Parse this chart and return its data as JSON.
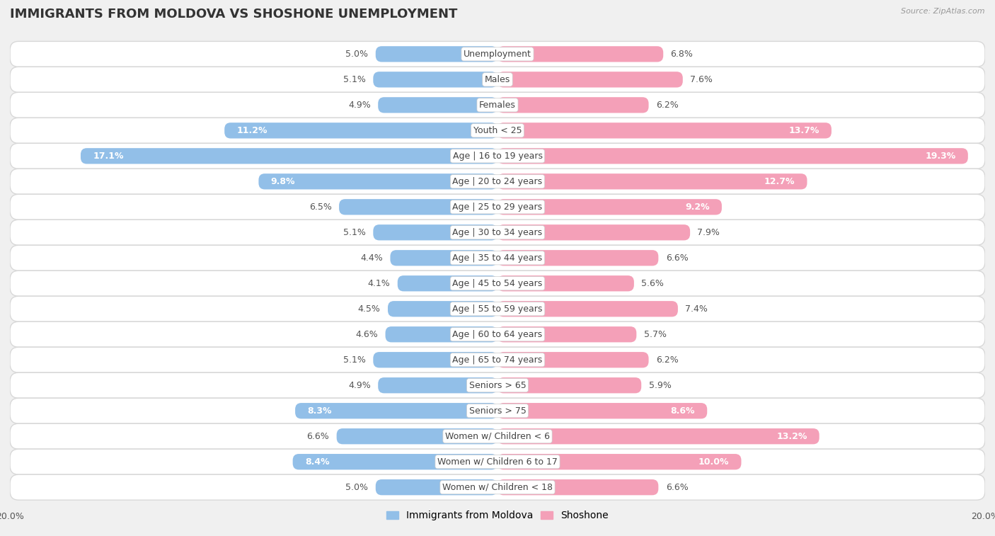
{
  "title": "IMMIGRANTS FROM MOLDOVA VS SHOSHONE UNEMPLOYMENT",
  "source": "Source: ZipAtlas.com",
  "categories": [
    "Unemployment",
    "Males",
    "Females",
    "Youth < 25",
    "Age | 16 to 19 years",
    "Age | 20 to 24 years",
    "Age | 25 to 29 years",
    "Age | 30 to 34 years",
    "Age | 35 to 44 years",
    "Age | 45 to 54 years",
    "Age | 55 to 59 years",
    "Age | 60 to 64 years",
    "Age | 65 to 74 years",
    "Seniors > 65",
    "Seniors > 75",
    "Women w/ Children < 6",
    "Women w/ Children 6 to 17",
    "Women w/ Children < 18"
  ],
  "moldova_values": [
    5.0,
    5.1,
    4.9,
    11.2,
    17.1,
    9.8,
    6.5,
    5.1,
    4.4,
    4.1,
    4.5,
    4.6,
    5.1,
    4.9,
    8.3,
    6.6,
    8.4,
    5.0
  ],
  "shoshone_values": [
    6.8,
    7.6,
    6.2,
    13.7,
    19.3,
    12.7,
    9.2,
    7.9,
    6.6,
    5.6,
    7.4,
    5.7,
    6.2,
    5.9,
    8.6,
    13.2,
    10.0,
    6.6
  ],
  "moldova_color": "#92bfe8",
  "shoshone_color": "#f4a0b8",
  "axis_limit": 20.0,
  "background_color": "#f0f0f0",
  "row_color": "#ffffff",
  "row_border_color": "#d8d8d8",
  "title_fontsize": 13,
  "label_fontsize": 9,
  "tick_fontsize": 9,
  "value_label_threshold": 8.0
}
